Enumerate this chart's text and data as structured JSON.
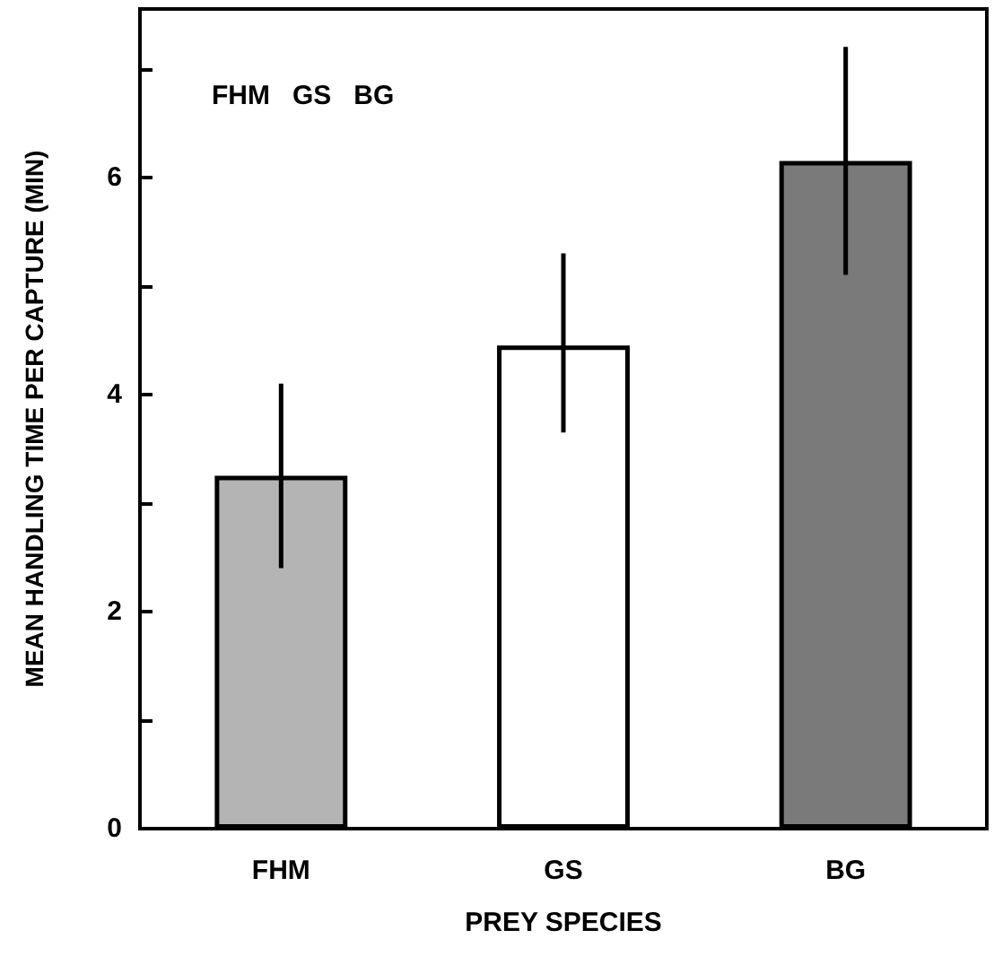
{
  "chart_data": {
    "type": "bar",
    "xlabel": "PREY SPECIES",
    "ylabel": "MEAN HANDLING TIME PER CAPTURE (MIN)",
    "categories": [
      "FHM",
      "GS",
      "BG"
    ],
    "values": [
      3.25,
      4.45,
      6.15
    ],
    "errors": [
      [
        2.4,
        4.1
      ],
      [
        3.65,
        5.3
      ],
      [
        5.1,
        7.2
      ]
    ],
    "colors": [
      "#b4b4b4",
      "#ffffff",
      "#7a7a7a"
    ],
    "ylim": [
      0,
      7.55
    ],
    "yticks": [
      0,
      {
        "value": 1,
        "label": null
      },
      2,
      {
        "value": 3,
        "label": null
      },
      4,
      {
        "value": 5,
        "label": null
      },
      6,
      {
        "value": 7,
        "label": null
      }
    ],
    "annotations": [
      "FHM   GS   BG"
    ],
    "grid": false
  }
}
